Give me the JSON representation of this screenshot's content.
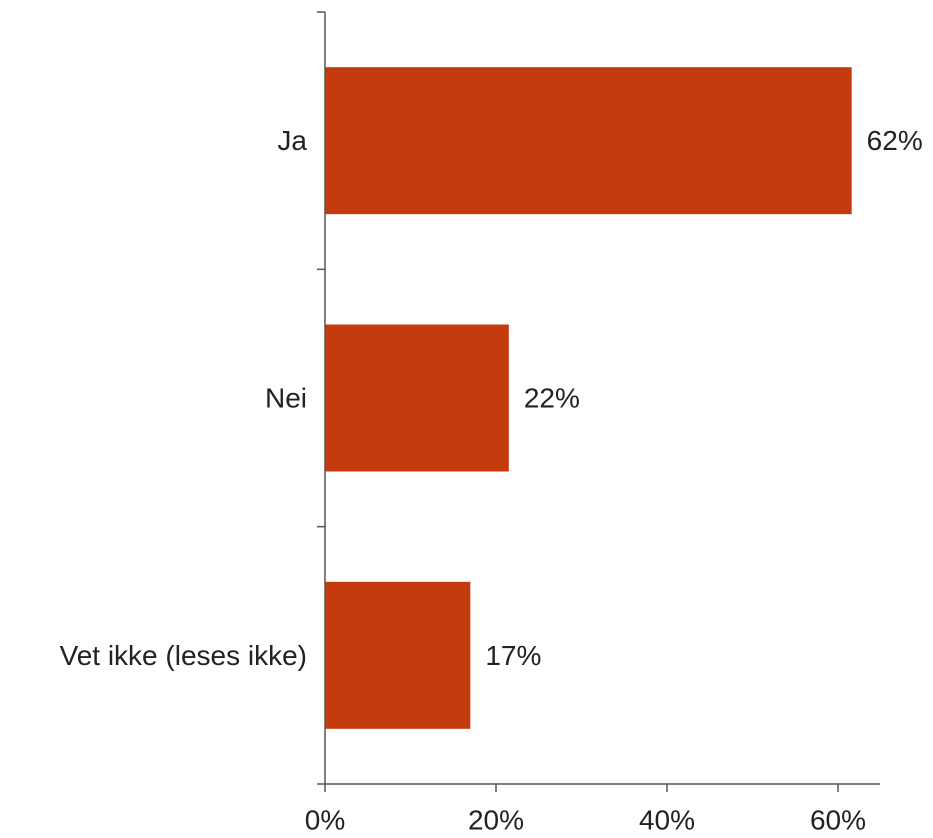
{
  "chart_data": {
    "type": "bar",
    "orientation": "horizontal",
    "categories": [
      "Ja",
      "Nei",
      "Vet ikke (leses ikke)"
    ],
    "values": [
      61.6,
      21.5,
      17.0
    ],
    "value_labels": [
      "62%",
      "22%",
      "17%"
    ],
    "x_ticks": [
      0,
      20,
      40,
      60
    ],
    "x_tick_labels": [
      "0%",
      "20%",
      "40%",
      "60%"
    ],
    "xlim": [
      0,
      65
    ],
    "bar_color": "#c43c0e",
    "axis_color": "#555555",
    "text_color": "#222222",
    "grid": false,
    "legend": "none",
    "title": "",
    "xlabel": "",
    "ylabel": ""
  }
}
